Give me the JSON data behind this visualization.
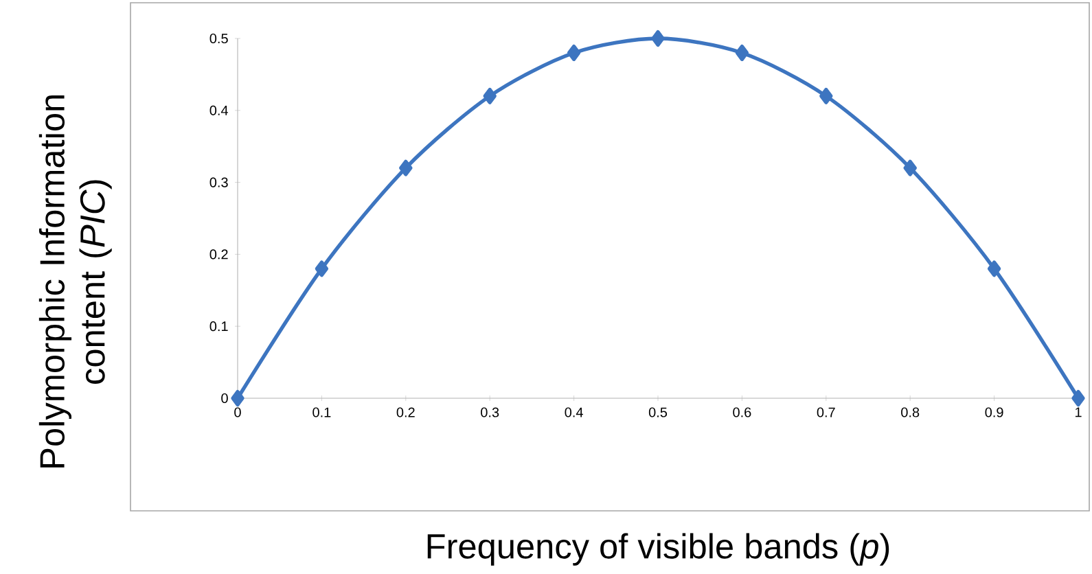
{
  "chart_data": {
    "type": "line",
    "xlabel": "Frequency of visible bands (*p*)",
    "ylabel": "Polymorphic Information content (*PIC*)",
    "x": [
      0,
      0.1,
      0.2,
      0.3,
      0.4,
      0.5,
      0.6,
      0.7,
      0.8,
      0.9,
      1
    ],
    "values": [
      0,
      0.18,
      0.32,
      0.42,
      0.48,
      0.5,
      0.48,
      0.42,
      0.32,
      0.18,
      0
    ],
    "color": "#3d75c0",
    "marker": "diamond",
    "line_style": "solid",
    "xlim": [
      0,
      1
    ],
    "ylim": [
      0,
      0.5
    ],
    "xticks": [
      0,
      0.1,
      0.2,
      0.3,
      0.4,
      0.5,
      0.6,
      0.7,
      0.8,
      0.9,
      1
    ],
    "yticks": [
      0,
      0.1,
      0.2,
      0.3,
      0.4,
      0.5
    ]
  }
}
